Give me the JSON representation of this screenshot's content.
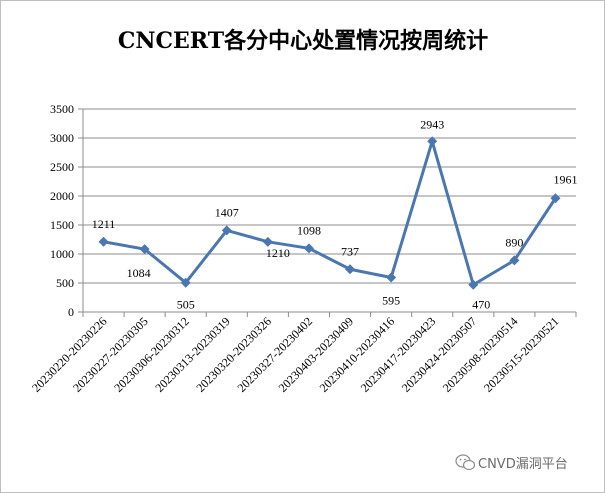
{
  "chart_data": {
    "type": "line",
    "title": "CNCERT各分中心处置情况按周统计",
    "xlabel": "",
    "ylabel": "",
    "ylim": [
      0,
      3500
    ],
    "yticks": [
      0,
      500,
      1000,
      1500,
      2000,
      2500,
      3000,
      3500
    ],
    "grid": true,
    "legend": "none",
    "categories": [
      "20230220-20230226",
      "20230227-20230305",
      "20230306-20230312",
      "20230313-20230319",
      "20230320-20230326",
      "20230327-20230402",
      "20230403-20230409",
      "20230410-20230416",
      "20230417-20230423",
      "20230424-20230507",
      "20230508-20230514",
      "20230515-20230521"
    ],
    "series": [
      {
        "values": [
          1211,
          1084,
          505,
          1407,
          1210,
          1098,
          737,
          595,
          2943,
          470,
          890,
          1961
        ],
        "color": "#4a76b2"
      }
    ]
  },
  "watermark": {
    "text": "CNVD漏洞平台",
    "icon": "wechat-icon"
  }
}
